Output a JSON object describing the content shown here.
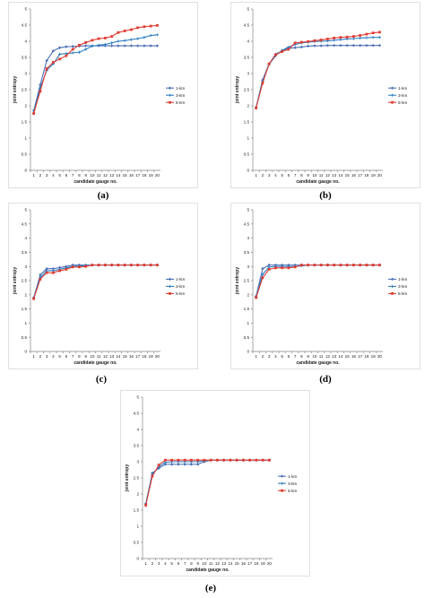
{
  "chart_data": [
    {
      "id": "a",
      "panel_label": "(a)",
      "type": "line",
      "xlabel": "candidate gauge no.",
      "ylabel": "joint entropy",
      "ylim": [
        0,
        5
      ],
      "yticks": [
        "0",
        "0.5",
        "1",
        "1.5",
        "2",
        "2.5",
        "3",
        "3.5",
        "4",
        "4.5",
        "5"
      ],
      "categories": [
        "1",
        "2",
        "3",
        "4",
        "5",
        "6",
        "7",
        "8",
        "9",
        "10",
        "11",
        "12",
        "13",
        "14",
        "15",
        "16",
        "17",
        "18",
        "19",
        "20"
      ],
      "legend_position": "right",
      "series": [
        {
          "name": "1-km",
          "color": "#4a6fb5",
          "marker": "diamond",
          "values": [
            1.85,
            2.65,
            3.4,
            3.7,
            3.8,
            3.83,
            3.84,
            3.85,
            3.86,
            3.86,
            3.86,
            3.86,
            3.86,
            3.86,
            3.86,
            3.86,
            3.86,
            3.86,
            3.86,
            3.86
          ]
        },
        {
          "name": "3-km",
          "color": "#2f7fc1",
          "marker": "plus",
          "values": [
            1.78,
            2.55,
            3.1,
            3.3,
            3.6,
            3.62,
            3.64,
            3.66,
            3.75,
            3.85,
            3.88,
            3.9,
            3.95,
            4.0,
            4.02,
            4.05,
            4.08,
            4.12,
            4.18,
            4.2
          ]
        },
        {
          "name": "5-km",
          "color": "#e03c31",
          "marker": "square",
          "values": [
            1.76,
            2.45,
            3.15,
            3.35,
            3.45,
            3.55,
            3.75,
            3.88,
            3.96,
            4.03,
            4.08,
            4.1,
            4.15,
            4.27,
            4.32,
            4.36,
            4.42,
            4.45,
            4.47,
            4.49
          ]
        }
      ]
    },
    {
      "id": "b",
      "panel_label": "(b)",
      "type": "line",
      "xlabel": "candidate gauge no.",
      "ylabel": "joint entropy",
      "ylim": [
        0,
        5
      ],
      "yticks": [
        "0",
        "0.5",
        "1",
        "1.5",
        "2",
        "2.5",
        "3",
        "3.5",
        "4",
        "4.5",
        "5"
      ],
      "categories": [
        "1",
        "2",
        "3",
        "4",
        "5",
        "6",
        "7",
        "8",
        "9",
        "10",
        "11",
        "12",
        "13",
        "14",
        "15",
        "16",
        "17",
        "18",
        "19",
        "20"
      ],
      "legend_position": "right",
      "series": [
        {
          "name": "1-km",
          "color": "#4a6fb5",
          "marker": "diamond",
          "values": [
            1.95,
            2.8,
            3.3,
            3.6,
            3.7,
            3.78,
            3.8,
            3.82,
            3.85,
            3.86,
            3.86,
            3.87,
            3.87,
            3.87,
            3.87,
            3.87,
            3.87,
            3.87,
            3.87,
            3.87
          ]
        },
        {
          "name": "3-km",
          "color": "#2f7fc1",
          "marker": "plus",
          "values": [
            1.95,
            2.75,
            3.28,
            3.55,
            3.72,
            3.82,
            3.9,
            3.95,
            3.97,
            3.99,
            4.0,
            4.01,
            4.03,
            4.05,
            4.07,
            4.08,
            4.1,
            4.11,
            4.12,
            4.12
          ]
        },
        {
          "name": "5-km",
          "color": "#e03c31",
          "marker": "square",
          "values": [
            1.93,
            2.7,
            3.3,
            3.58,
            3.68,
            3.75,
            3.95,
            3.97,
            3.99,
            4.02,
            4.04,
            4.07,
            4.1,
            4.12,
            4.13,
            4.15,
            4.18,
            4.22,
            4.26,
            4.28
          ]
        }
      ]
    },
    {
      "id": "c",
      "panel_label": "(c)",
      "type": "line",
      "xlabel": "candidate gauge no.",
      "ylabel": "joint entropy",
      "ylim": [
        0,
        5
      ],
      "yticks": [
        "0",
        "0.5",
        "1",
        "1.5",
        "2",
        "2.5",
        "3",
        "3.5",
        "4",
        "4.5",
        "5"
      ],
      "categories": [
        "1",
        "2",
        "3",
        "4",
        "5",
        "6",
        "7",
        "8",
        "9",
        "10",
        "11",
        "12",
        "13",
        "14",
        "15",
        "16",
        "17",
        "18",
        "19",
        "20"
      ],
      "legend_position": "right",
      "series": [
        {
          "name": "1-km",
          "color": "#4a6fb5",
          "marker": "diamond",
          "values": [
            1.9,
            2.7,
            2.92,
            2.92,
            2.96,
            3.0,
            3.05,
            3.05,
            3.05,
            3.05,
            3.05,
            3.05,
            3.05,
            3.05,
            3.05,
            3.05,
            3.05,
            3.05,
            3.05,
            3.05
          ]
        },
        {
          "name": "3-km",
          "color": "#2f7fc1",
          "marker": "plus",
          "values": [
            1.88,
            2.6,
            2.85,
            2.85,
            2.9,
            2.95,
            3.0,
            3.02,
            3.03,
            3.05,
            3.05,
            3.05,
            3.05,
            3.05,
            3.05,
            3.05,
            3.05,
            3.05,
            3.05,
            3.05
          ]
        },
        {
          "name": "5-km",
          "color": "#e03c31",
          "marker": "square",
          "values": [
            1.86,
            2.55,
            2.78,
            2.78,
            2.85,
            2.9,
            2.98,
            2.98,
            3.0,
            3.05,
            3.05,
            3.05,
            3.05,
            3.05,
            3.05,
            3.05,
            3.05,
            3.05,
            3.05,
            3.05
          ]
        }
      ]
    },
    {
      "id": "d",
      "panel_label": "(d)",
      "type": "line",
      "xlabel": "candidate gauge no.",
      "ylabel": "joint entropy",
      "ylim": [
        0,
        5
      ],
      "yticks": [
        "0",
        "0.5",
        "1",
        "1.5",
        "2",
        "2.5",
        "3",
        "3.5",
        "4",
        "4.5",
        "5"
      ],
      "categories": [
        "1",
        "2",
        "3",
        "4",
        "5",
        "6",
        "7",
        "8",
        "9",
        "10",
        "11",
        "12",
        "13",
        "14",
        "15",
        "16",
        "17",
        "18",
        "19",
        "20"
      ],
      "legend_position": "right",
      "series": [
        {
          "name": "1-km",
          "color": "#4a6fb5",
          "marker": "diamond",
          "values": [
            1.95,
            2.92,
            3.05,
            3.05,
            3.05,
            3.05,
            3.05,
            3.05,
            3.05,
            3.05,
            3.05,
            3.05,
            3.05,
            3.05,
            3.05,
            3.05,
            3.05,
            3.05,
            3.05,
            3.05
          ]
        },
        {
          "name": "3-km",
          "color": "#2f7fc1",
          "marker": "plus",
          "values": [
            1.92,
            2.72,
            2.98,
            3.0,
            3.0,
            3.0,
            3.0,
            3.02,
            3.05,
            3.05,
            3.05,
            3.05,
            3.05,
            3.05,
            3.05,
            3.05,
            3.05,
            3.05,
            3.05,
            3.05
          ]
        },
        {
          "name": "5-km",
          "color": "#e03c31",
          "marker": "square",
          "values": [
            1.9,
            2.6,
            2.9,
            2.95,
            2.95,
            2.95,
            2.98,
            3.05,
            3.05,
            3.05,
            3.05,
            3.05,
            3.05,
            3.05,
            3.05,
            3.05,
            3.05,
            3.05,
            3.05,
            3.05
          ]
        }
      ]
    },
    {
      "id": "e",
      "panel_label": "(e)",
      "type": "line",
      "xlabel": "candidate gauge no.",
      "ylabel": "joint entropy",
      "ylim": [
        0,
        5
      ],
      "yticks": [
        "0",
        "0.5",
        "1",
        "1.5",
        "2",
        "2.5",
        "3",
        "3.5",
        "4",
        "4.5",
        "5"
      ],
      "categories": [
        "1",
        "2",
        "3",
        "4",
        "5",
        "6",
        "7",
        "8",
        "9",
        "10",
        "11",
        "12",
        "13",
        "14",
        "15",
        "16",
        "17",
        "18",
        "19",
        "20"
      ],
      "legend_position": "right",
      "series": [
        {
          "name": "1-km",
          "color": "#4a6fb5",
          "marker": "diamond",
          "values": [
            1.7,
            2.65,
            2.8,
            2.92,
            2.92,
            2.92,
            2.92,
            2.92,
            2.92,
            3.0,
            3.05,
            3.05,
            3.05,
            3.05,
            3.05,
            3.05,
            3.05,
            3.05,
            3.05,
            3.05
          ]
        },
        {
          "name": "3-km",
          "color": "#2f7fc1",
          "marker": "plus",
          "values": [
            1.68,
            2.6,
            2.85,
            2.98,
            3.0,
            3.0,
            3.0,
            3.0,
            3.0,
            3.03,
            3.05,
            3.05,
            3.05,
            3.05,
            3.05,
            3.05,
            3.05,
            3.05,
            3.05,
            3.05
          ]
        },
        {
          "name": "5-km",
          "color": "#e03c31",
          "marker": "square",
          "values": [
            1.65,
            2.55,
            2.9,
            3.05,
            3.05,
            3.05,
            3.05,
            3.05,
            3.05,
            3.05,
            3.05,
            3.05,
            3.05,
            3.05,
            3.05,
            3.05,
            3.05,
            3.05,
            3.05,
            3.05
          ]
        }
      ]
    }
  ]
}
